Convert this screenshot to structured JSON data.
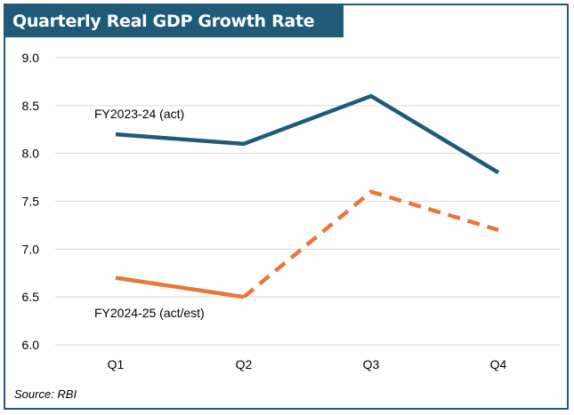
{
  "chart_data": {
    "type": "line",
    "title": "Quarterly Real GDP Growth Rate (%)",
    "categories": [
      "Q1",
      "Q2",
      "Q3",
      "Q4"
    ],
    "ylim": [
      6.0,
      9.0
    ],
    "yticks": [
      "9.0",
      "8.5",
      "8.0",
      "7.5",
      "7.0",
      "6.5",
      "6.0"
    ],
    "grid": true,
    "series": [
      {
        "name": "FY2023-24 (act)",
        "values": [
          8.2,
          8.1,
          8.6,
          7.8
        ],
        "color": "#1f5a78",
        "style": "solid"
      },
      {
        "name": "FY2024-25 (act/est)",
        "values": [
          6.7,
          6.5,
          7.6,
          7.2
        ],
        "color": "#e8773a",
        "style": "solid for Q1-Q2, dashed for Q2-Q4"
      }
    ],
    "source": "Source: RBI"
  },
  "colors": {
    "accent": "#1f5a78",
    "series2": "#e8773a",
    "grid": "#d9d9d9"
  }
}
